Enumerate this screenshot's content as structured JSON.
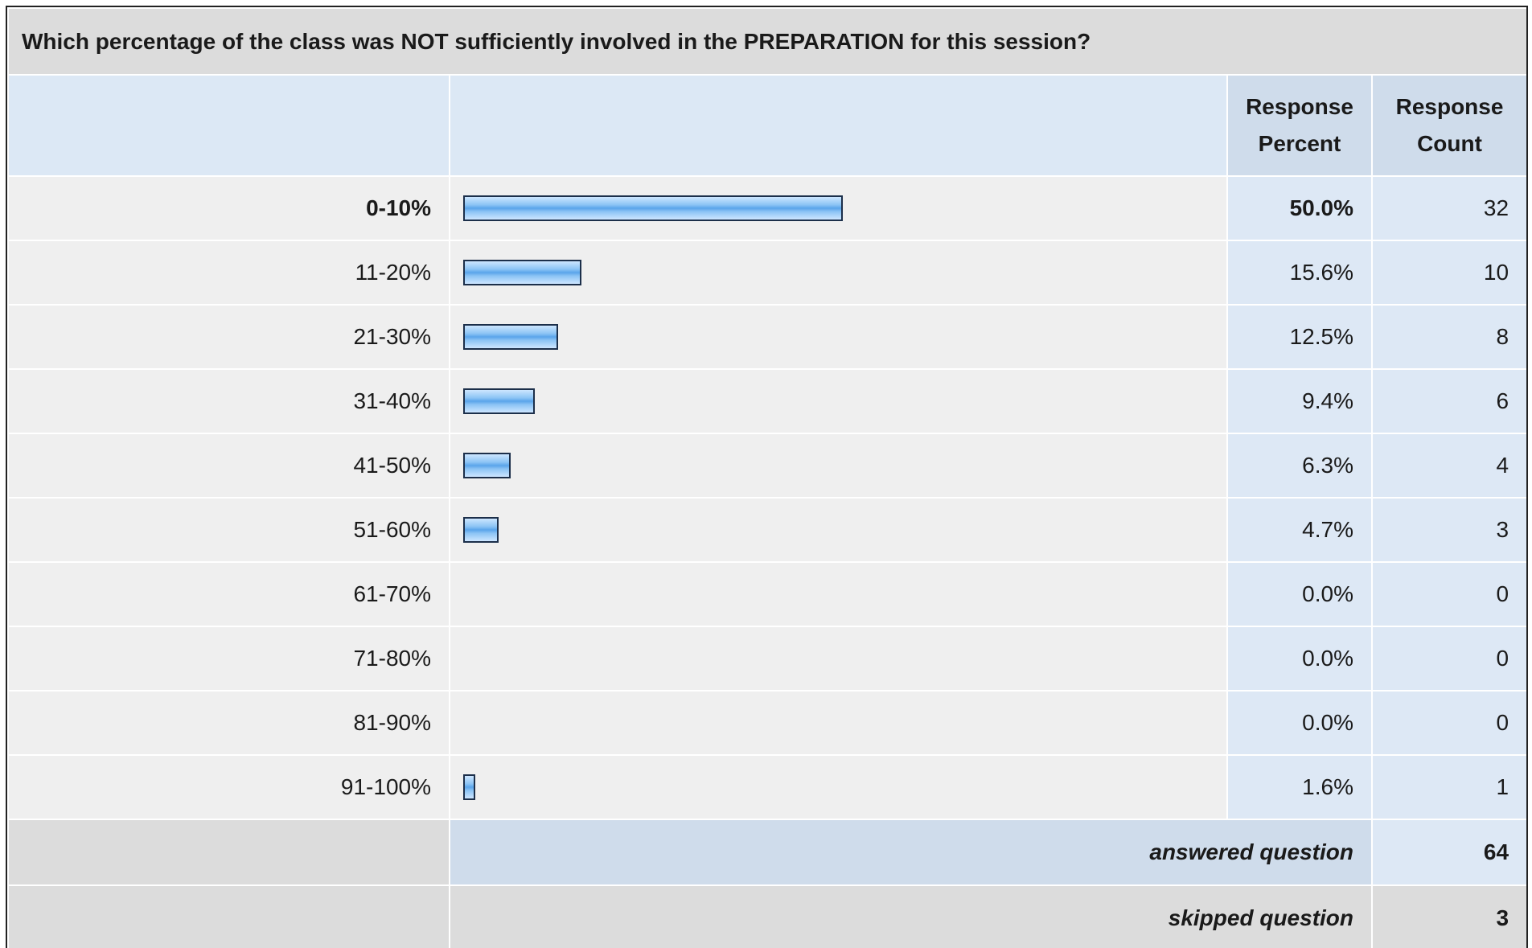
{
  "question": "Which percentage of the class was NOT sufficiently involved in the PREPARATION for this session?",
  "headers": {
    "percent": "Response Percent",
    "count": "Response Count"
  },
  "rows": [
    {
      "label": "0-10%",
      "percent": 50.0,
      "percent_label": "50.0%",
      "count": 32
    },
    {
      "label": "11-20%",
      "percent": 15.6,
      "percent_label": "15.6%",
      "count": 10
    },
    {
      "label": "21-30%",
      "percent": 12.5,
      "percent_label": "12.5%",
      "count": 8
    },
    {
      "label": "31-40%",
      "percent": 9.4,
      "percent_label": "9.4%",
      "count": 6
    },
    {
      "label": "41-50%",
      "percent": 6.3,
      "percent_label": "6.3%",
      "count": 4
    },
    {
      "label": "51-60%",
      "percent": 4.7,
      "percent_label": "4.7%",
      "count": 3
    },
    {
      "label": "61-70%",
      "percent": 0.0,
      "percent_label": "0.0%",
      "count": 0
    },
    {
      "label": "71-80%",
      "percent": 0.0,
      "percent_label": "0.0%",
      "count": 0
    },
    {
      "label": "81-90%",
      "percent": 0.0,
      "percent_label": "0.0%",
      "count": 0
    },
    {
      "label": "91-100%",
      "percent": 1.6,
      "percent_label": "1.6%",
      "count": 1
    }
  ],
  "summary": {
    "answered": {
      "label": "answered question",
      "count": 64
    },
    "skipped": {
      "label": "skipped question",
      "count": 3
    }
  }
}
